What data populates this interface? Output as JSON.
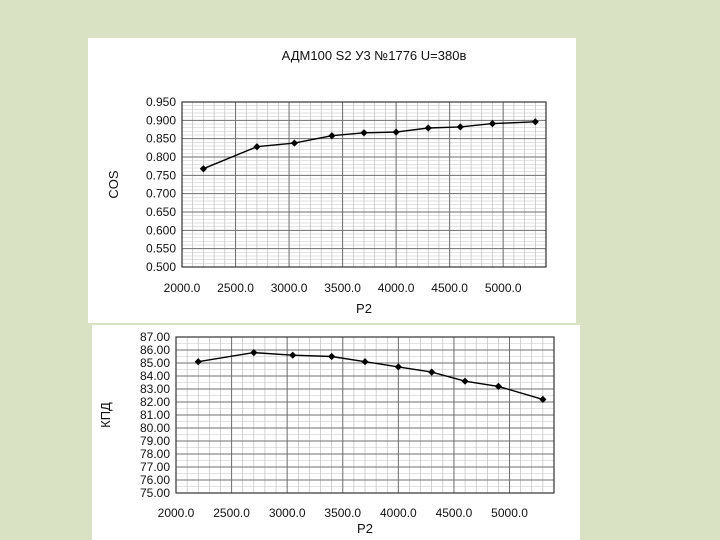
{
  "colors": {
    "background": "#d9e3c4",
    "panel": "#ffffff",
    "grid": "#8c8c8c",
    "line": "#000000"
  },
  "chart_data": [
    {
      "type": "line",
      "title": "АДМ100 S2 У3 №1776  U=380в",
      "xlabel": "P2",
      "ylabel": "COS",
      "xlim": [
        2000,
        5400
      ],
      "ylim": [
        0.5,
        0.95
      ],
      "x_ticks": [
        2000,
        2500,
        3000,
        3500,
        4000,
        4500,
        5000
      ],
      "x_tick_labels": [
        "2000.0",
        "2500.0",
        "3000.0",
        "3500.0",
        "4000.0",
        "4500.0",
        "5000.0"
      ],
      "y_ticks": [
        0.5,
        0.55,
        0.6,
        0.65,
        0.7,
        0.75,
        0.8,
        0.85,
        0.9,
        0.95
      ],
      "y_tick_labels": [
        "0.500",
        "0.550",
        "0.600",
        "0.650",
        "0.700",
        "0.750",
        "0.800",
        "0.850",
        "0.900",
        "0.950"
      ],
      "grid": true,
      "series": [
        {
          "x": [
            2200,
            2700,
            3050,
            3400,
            3700,
            4000,
            4300,
            4600,
            4900,
            5300
          ],
          "y": [
            0.768,
            0.828,
            0.838,
            0.858,
            0.866,
            0.868,
            0.879,
            0.882,
            0.891,
            0.896
          ]
        }
      ]
    },
    {
      "type": "line",
      "title": "",
      "xlabel": "P2",
      "ylabel": "КПД",
      "xlim": [
        2000,
        5400
      ],
      "ylim": [
        75,
        87
      ],
      "x_ticks": [
        2000,
        2500,
        3000,
        3500,
        4000,
        4500,
        5000
      ],
      "x_tick_labels": [
        "2000.0",
        "2500.0",
        "3000.0",
        "3500.0",
        "4000.0",
        "4500.0",
        "5000.0"
      ],
      "y_ticks": [
        75,
        76,
        77,
        78,
        79,
        80,
        81,
        82,
        83,
        84,
        85,
        86,
        87
      ],
      "y_tick_labels": [
        "75.00",
        "76.00",
        "77.00",
        "78.00",
        "79.00",
        "80.00",
        "81.00",
        "82.00",
        "83.00",
        "84.00",
        "85.00",
        "86.00",
        "87.00"
      ],
      "grid": true,
      "series": [
        {
          "x": [
            2200,
            2700,
            3050,
            3400,
            3700,
            4000,
            4300,
            4600,
            4900,
            5300
          ],
          "y": [
            85.1,
            85.8,
            85.6,
            85.5,
            85.1,
            84.7,
            84.3,
            83.6,
            83.2,
            82.2
          ]
        }
      ]
    }
  ]
}
